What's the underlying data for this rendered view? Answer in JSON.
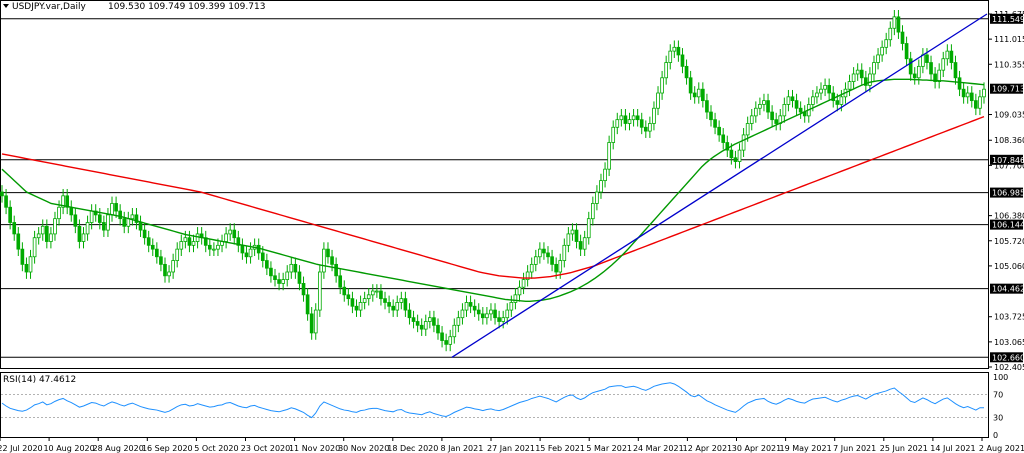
{
  "header": {
    "symbol": "USDJPY.var,Daily",
    "ohlc": "109.530 109.749 109.399 109.713"
  },
  "rsi_label": "RSI(14) 47.4612",
  "colors": {
    "candle": "#00aa00",
    "ma_fast": "#009900",
    "ma_slow": "#ee0000",
    "trendline": "#0000cc",
    "rsi": "#1e90ff",
    "level_box": "#000000",
    "level_box_text": "#ffffff"
  },
  "chart_data": {
    "type": "candlestick",
    "x_labels": [
      "22 Jul 2020",
      "10 Aug 2020",
      "28 Aug 2020",
      "16 Sep 2020",
      "5 Oct 2020",
      "23 Oct 2020",
      "11 Nov 2020",
      "30 Nov 2020",
      "18 Dec 2020",
      "8 Jan 2021",
      "27 Jan 2021",
      "15 Feb 2021",
      "5 Mar 2021",
      "24 Mar 2021",
      "12 Apr 2021",
      "30 Apr 2021",
      "19 May 2021",
      "7 Jun 2021",
      "25 Jun 2021",
      "14 Jul 2021",
      "2 Aug 2021"
    ],
    "price_ticks": [
      111.675,
      111.015,
      110.355,
      109.035,
      108.36,
      107.7,
      106.38,
      105.72,
      105.06,
      103.725,
      103.065,
      102.405
    ],
    "levels": [
      111.549,
      107.846,
      106.985,
      106.144,
      104.462,
      102.66
    ],
    "current_price": 109.713,
    "ylim": [
      102.405,
      111.675
    ],
    "closes": [
      106.9,
      106.6,
      106.2,
      105.9,
      105.5,
      105.1,
      104.9,
      105.3,
      105.8,
      105.9,
      106.1,
      105.7,
      105.9,
      106.3,
      106.6,
      106.9,
      106.6,
      106.4,
      106.1,
      105.7,
      105.9,
      106.2,
      106.5,
      106.4,
      106.2,
      106.0,
      106.4,
      106.7,
      106.5,
      106.3,
      106.1,
      106.3,
      106.4,
      106.2,
      106.0,
      105.8,
      105.6,
      105.5,
      105.3,
      105.1,
      104.8,
      104.9,
      105.2,
      105.5,
      105.7,
      105.8,
      105.6,
      105.7,
      105.9,
      105.8,
      105.6,
      105.5,
      105.5,
      105.6,
      105.7,
      105.9,
      106.0,
      105.8,
      105.6,
      105.4,
      105.3,
      105.5,
      105.6,
      105.4,
      105.2,
      105.0,
      104.8,
      104.7,
      104.6,
      104.7,
      104.9,
      105.1,
      104.9,
      104.6,
      104.3,
      103.8,
      103.3,
      103.9,
      104.9,
      105.5,
      105.3,
      105.1,
      104.8,
      104.5,
      104.3,
      104.2,
      104.0,
      103.9,
      104.1,
      104.2,
      104.3,
      104.4,
      104.4,
      104.2,
      104.1,
      104.0,
      103.9,
      104.1,
      104.2,
      103.9,
      103.7,
      103.6,
      103.5,
      103.4,
      103.6,
      103.7,
      103.5,
      103.3,
      103.1,
      103.0,
      103.2,
      103.5,
      103.7,
      103.9,
      104.1,
      104.0,
      103.9,
      103.8,
      103.7,
      103.8,
      103.9,
      103.7,
      103.6,
      103.7,
      103.9,
      104.1,
      104.3,
      104.5,
      104.7,
      104.9,
      105.1,
      105.3,
      105.5,
      105.4,
      105.3,
      105.1,
      104.9,
      105.2,
      105.6,
      105.9,
      106.0,
      105.7,
      105.5,
      105.8,
      106.3,
      106.7,
      107.0,
      107.3,
      107.6,
      108.3,
      108.7,
      108.9,
      109.0,
      108.8,
      108.9,
      109.0,
      108.9,
      108.7,
      108.6,
      108.8,
      109.2,
      109.6,
      110.0,
      110.4,
      110.7,
      110.8,
      110.6,
      110.3,
      110.0,
      109.6,
      109.5,
      109.7,
      109.4,
      109.1,
      108.9,
      108.7,
      108.5,
      108.3,
      108.1,
      107.9,
      107.8,
      108.1,
      108.5,
      108.8,
      109.0,
      109.2,
      109.3,
      109.4,
      109.1,
      108.9,
      108.8,
      109.0,
      109.3,
      109.5,
      109.4,
      109.2,
      109.1,
      109.0,
      109.3,
      109.5,
      109.6,
      109.7,
      109.8,
      109.6,
      109.4,
      109.3,
      109.5,
      109.7,
      109.9,
      110.1,
      110.2,
      110.0,
      109.8,
      110.1,
      110.4,
      110.6,
      110.8,
      111.0,
      111.3,
      111.6,
      111.2,
      110.9,
      110.5,
      110.1,
      110.0,
      110.3,
      110.6,
      110.4,
      110.1,
      109.9,
      110.2,
      110.5,
      110.7,
      110.4,
      110.0,
      109.7,
      109.5,
      109.6,
      109.4,
      109.2,
      109.5,
      109.7
    ],
    "ma_fast": [
      107.6,
      107.5,
      107.4,
      107.3,
      107.2,
      107.1,
      107.0,
      106.95,
      106.9,
      106.85,
      106.8,
      106.75,
      106.7,
      106.68,
      106.66,
      106.64,
      106.62,
      106.6,
      106.58,
      106.56,
      106.54,
      106.52,
      106.5,
      106.48,
      106.46,
      106.44,
      106.42,
      106.4,
      106.38,
      106.36,
      106.33,
      106.3,
      106.27,
      106.24,
      106.21,
      106.18,
      106.15,
      106.12,
      106.09,
      106.06,
      106.03,
      106.0,
      105.97,
      105.94,
      105.91,
      105.88,
      105.86,
      105.84,
      105.82,
      105.8,
      105.78,
      105.76,
      105.74,
      105.72,
      105.7,
      105.68,
      105.66,
      105.64,
      105.62,
      105.6,
      105.58,
      105.56,
      105.54,
      105.52,
      105.49,
      105.46,
      105.43,
      105.4,
      105.37,
      105.34,
      105.31,
      105.28,
      105.25,
      105.22,
      105.19,
      105.16,
      105.13,
      105.1,
      105.08,
      105.06,
      105.04,
      105.02,
      105.0,
      104.98,
      104.96,
      104.94,
      104.92,
      104.9,
      104.88,
      104.86,
      104.84,
      104.82,
      104.8,
      104.78,
      104.76,
      104.74,
      104.72,
      104.7,
      104.68,
      104.66,
      104.64,
      104.62,
      104.6,
      104.58,
      104.56,
      104.54,
      104.52,
      104.5,
      104.48,
      104.46,
      104.44,
      104.42,
      104.4,
      104.38,
      104.36,
      104.34,
      104.32,
      104.3,
      104.28,
      104.26,
      104.24,
      104.22,
      104.2,
      104.18,
      104.17,
      104.16,
      104.15,
      104.14,
      104.13,
      104.13,
      104.14,
      104.15,
      104.16,
      104.18,
      104.2,
      104.23,
      104.26,
      104.3,
      104.34,
      104.38,
      104.43,
      104.48,
      104.54,
      104.6,
      104.67,
      104.74,
      104.82,
      104.9,
      104.99,
      105.08,
      105.18,
      105.28,
      105.39,
      105.5,
      105.62,
      105.74,
      105.86,
      105.98,
      106.1,
      106.22,
      106.34,
      106.46,
      106.58,
      106.7,
      106.82,
      106.94,
      107.06,
      107.18,
      107.3,
      107.42,
      107.54,
      107.66,
      107.76,
      107.85,
      107.93,
      108.0,
      108.07,
      108.13,
      108.19,
      108.25,
      108.3,
      108.35,
      108.4,
      108.45,
      108.5,
      108.55,
      108.6,
      108.65,
      108.7,
      108.75,
      108.8,
      108.85,
      108.9,
      108.95,
      109.0,
      109.05,
      109.1,
      109.15,
      109.2,
      109.25,
      109.3,
      109.35,
      109.4,
      109.45,
      109.5,
      109.55,
      109.6,
      109.65,
      109.7,
      109.75,
      109.8,
      109.84,
      109.88,
      109.9,
      109.92,
      109.93,
      109.94,
      109.95,
      109.96,
      109.96,
      109.96,
      109.96,
      109.96,
      109.95,
      109.95,
      109.94,
      109.94,
      109.93,
      109.93,
      109.92,
      109.92,
      109.91,
      109.9,
      109.89,
      109.88,
      109.87,
      109.86,
      109.85,
      109.84,
      109.83,
      109.82
    ],
    "ma_slow": [
      108.0,
      107.98,
      107.96,
      107.94,
      107.92,
      107.9,
      107.88,
      107.86,
      107.84,
      107.82,
      107.8,
      107.78,
      107.76,
      107.74,
      107.72,
      107.7,
      107.68,
      107.66,
      107.64,
      107.62,
      107.6,
      107.58,
      107.56,
      107.54,
      107.52,
      107.5,
      107.48,
      107.46,
      107.44,
      107.42,
      107.4,
      107.38,
      107.36,
      107.34,
      107.32,
      107.3,
      107.28,
      107.26,
      107.24,
      107.22,
      107.2,
      107.18,
      107.16,
      107.14,
      107.12,
      107.1,
      107.08,
      107.06,
      107.04,
      107.02,
      107.0,
      106.97,
      106.94,
      106.91,
      106.88,
      106.85,
      106.82,
      106.79,
      106.76,
      106.73,
      106.7,
      106.67,
      106.64,
      106.61,
      106.58,
      106.55,
      106.52,
      106.49,
      106.46,
      106.43,
      106.4,
      106.37,
      106.34,
      106.31,
      106.28,
      106.25,
      106.22,
      106.19,
      106.16,
      106.13,
      106.1,
      106.07,
      106.04,
      106.01,
      105.98,
      105.95,
      105.92,
      105.89,
      105.86,
      105.83,
      105.8,
      105.77,
      105.74,
      105.71,
      105.68,
      105.65,
      105.62,
      105.59,
      105.56,
      105.53,
      105.5,
      105.47,
      105.44,
      105.41,
      105.38,
      105.35,
      105.32,
      105.29,
      105.26,
      105.23,
      105.2,
      105.17,
      105.14,
      105.11,
      105.08,
      105.05,
      105.02,
      104.99,
      104.96,
      104.93,
      104.9,
      104.88,
      104.86,
      104.84,
      104.82,
      104.8,
      104.79,
      104.78,
      104.77,
      104.76,
      104.75,
      104.74,
      104.74,
      104.74,
      104.74,
      104.75,
      104.76,
      104.77,
      104.78,
      104.8,
      104.82,
      104.84,
      104.86,
      104.88,
      104.91,
      104.94,
      104.97,
      105.0,
      105.03,
      105.06,
      105.1,
      105.14,
      105.18,
      105.22,
      105.26,
      105.3,
      105.34,
      105.38,
      105.42,
      105.46,
      105.5,
      105.54,
      105.58,
      105.62,
      105.66,
      105.7,
      105.74,
      105.78,
      105.82,
      105.86,
      105.9,
      105.94,
      105.98,
      106.02,
      106.06,
      106.1,
      106.14,
      106.18,
      106.22,
      106.26,
      106.3,
      106.34,
      106.38,
      106.42,
      106.46,
      106.5,
      106.54,
      106.58,
      106.62,
      106.66,
      106.7,
      106.74,
      106.78,
      106.82,
      106.86,
      106.9,
      106.94,
      106.98,
      107.02,
      107.06,
      107.1,
      107.14,
      107.18,
      107.22,
      107.26,
      107.3,
      107.34,
      107.38,
      107.42,
      107.46,
      107.5,
      107.54,
      107.58,
      107.62,
      107.66,
      107.7,
      107.74,
      107.78,
      107.82,
      107.86,
      107.9,
      107.94,
      107.98,
      108.02,
      108.06,
      108.1,
      108.14,
      108.18,
      108.22,
      108.26,
      108.3,
      108.34,
      108.38,
      108.42,
      108.46,
      108.5,
      108.54,
      108.58,
      108.62,
      108.66,
      108.7,
      108.74,
      108.78,
      108.82,
      108.86,
      108.9,
      108.94,
      108.98
    ],
    "trendline": {
      "from": {
        "x": "8 Jan 2021",
        "y": 102.66
      },
      "to": {
        "x": "2 Aug 2021",
        "y": 111.675
      }
    },
    "rsi": {
      "label": "RSI(14) 47.4612",
      "ticks": [
        100,
        70,
        30,
        0
      ],
      "ylim": [
        0,
        100
      ],
      "values": [
        55,
        50,
        46,
        44,
        42,
        41,
        43,
        47,
        52,
        54,
        57,
        52,
        54,
        58,
        61,
        63,
        59,
        56,
        52,
        48,
        50,
        53,
        56,
        55,
        52,
        50,
        54,
        57,
        55,
        52,
        50,
        53,
        55,
        52,
        49,
        47,
        45,
        44,
        43,
        41,
        39,
        41,
        45,
        49,
        52,
        53,
        50,
        51,
        54,
        52,
        50,
        48,
        49,
        51,
        52,
        55,
        56,
        53,
        50,
        48,
        47,
        50,
        51,
        48,
        46,
        44,
        42,
        41,
        40,
        42,
        44,
        47,
        45,
        42,
        39,
        34,
        30,
        38,
        50,
        57,
        54,
        51,
        48,
        45,
        43,
        42,
        40,
        39,
        42,
        43,
        45,
        46,
        46,
        44,
        42,
        41,
        40,
        43,
        44,
        40,
        38,
        37,
        36,
        35,
        38,
        40,
        37,
        35,
        33,
        32,
        35,
        39,
        42,
        45,
        48,
        47,
        45,
        44,
        42,
        44,
        45,
        43,
        42,
        44,
        47,
        50,
        53,
        56,
        58,
        60,
        63,
        65,
        67,
        65,
        63,
        60,
        57,
        61,
        65,
        68,
        69,
        64,
        61,
        64,
        69,
        73,
        75,
        77,
        79,
        83,
        84,
        85,
        85,
        82,
        83,
        84,
        82,
        79,
        77,
        80,
        84,
        86,
        88,
        89,
        90,
        88,
        84,
        79,
        74,
        68,
        66,
        69,
        64,
        59,
        56,
        52,
        49,
        46,
        43,
        41,
        39,
        44,
        50,
        55,
        58,
        61,
        62,
        63,
        58,
        55,
        53,
        56,
        60,
        63,
        61,
        58,
        56,
        55,
        59,
        62,
        63,
        64,
        65,
        62,
        59,
        57,
        60,
        62,
        65,
        67,
        68,
        65,
        62,
        66,
        70,
        72,
        74,
        76,
        79,
        81,
        75,
        70,
        64,
        58,
        56,
        60,
        64,
        61,
        57,
        54,
        58,
        62,
        64,
        59,
        54,
        50,
        47,
        49,
        46,
        43,
        47,
        47
      ]
    }
  }
}
